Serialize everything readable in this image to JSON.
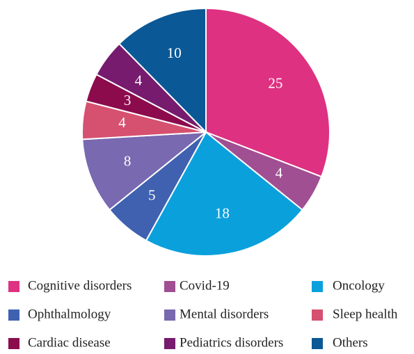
{
  "chart_data": {
    "type": "pie",
    "categories": [
      "Cognitive disorders",
      "Covid-19",
      "Oncology",
      "Ophthalmology",
      "Mental disorders",
      "Sleep health",
      "Cardiac disease",
      "Pediatrics disorders",
      "Others"
    ],
    "values": [
      25,
      4,
      18,
      5,
      8,
      4,
      3,
      4,
      10
    ],
    "colors": [
      "#de3181",
      "#a04f93",
      "#0aa0dc",
      "#3f61b0",
      "#7869b0",
      "#d6506f",
      "#8c0b4d",
      "#771b6e",
      "#0b5896"
    ],
    "legend": "bottom"
  }
}
